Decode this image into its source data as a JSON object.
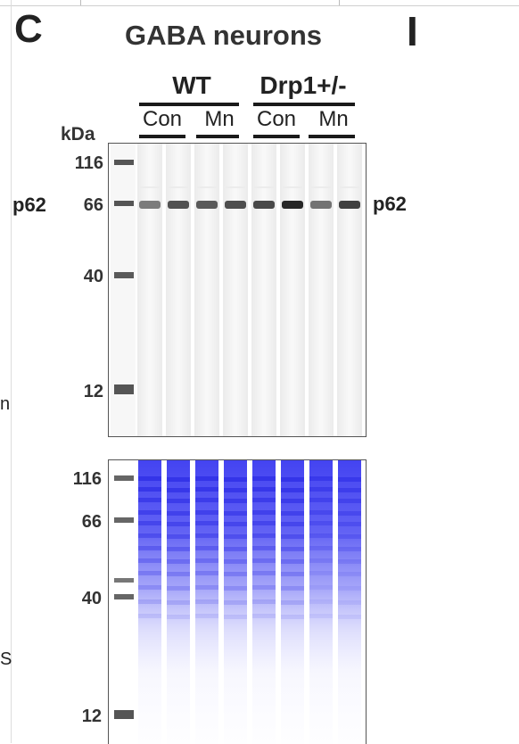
{
  "figure": {
    "panel_letter": "C",
    "title": "GABA neurons",
    "right_panel_letter": "I",
    "groups": [
      {
        "label": "WT"
      },
      {
        "label": "Drp1+/-"
      }
    ],
    "conditions": [
      "Con",
      "Mn",
      "Con",
      "Mn"
    ],
    "kda_label": "kDa",
    "protein_label_left": "p62",
    "protein_label_right": "p62",
    "left_edge_fragments": [
      "n",
      "S"
    ]
  },
  "top_blot": {
    "marker_labels": [
      "116",
      "66",
      "40",
      "12"
    ],
    "marker_kda": [
      116,
      66,
      40,
      12
    ],
    "p62_band_intensity": [
      0.45,
      0.7,
      0.65,
      0.72,
      0.75,
      0.95,
      0.5,
      0.8
    ]
  },
  "bottom_blot": {
    "marker_labels": [
      "116",
      "66",
      "40",
      "12"
    ],
    "marker_kda": [
      116,
      66,
      40,
      12
    ]
  },
  "colors": {
    "text": "#222222",
    "band_dark": "#222222",
    "marker": "#6a6a6a",
    "total_protein_blue": "#3a3af0"
  }
}
